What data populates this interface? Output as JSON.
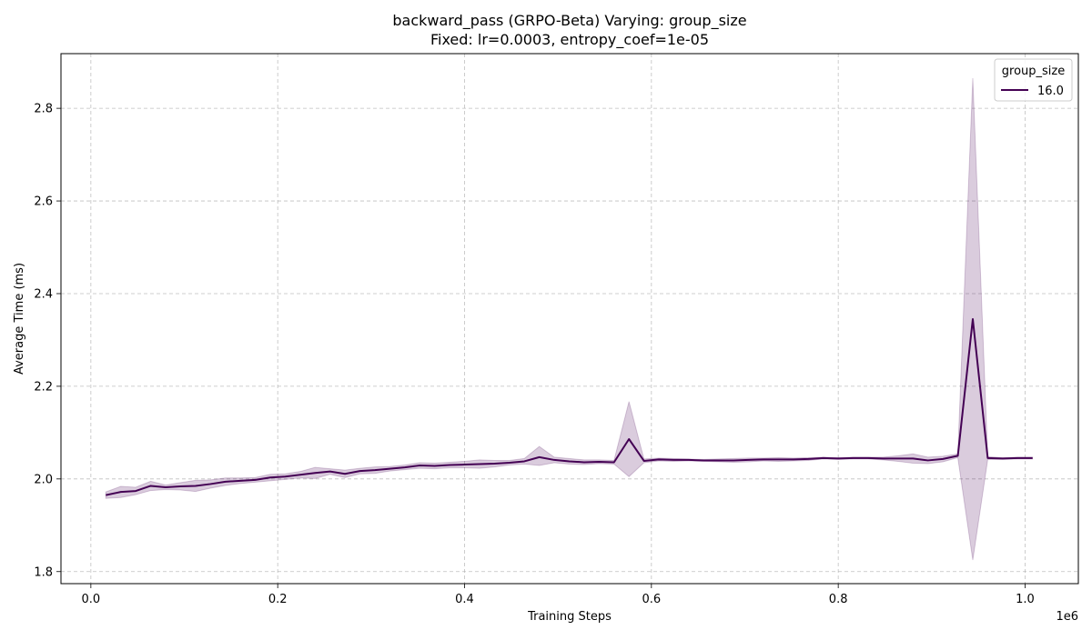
{
  "chart_data": {
    "type": "line",
    "title": "backward_pass (GRPO-Beta) Varying: group_size",
    "subtitle": "Fixed: lr=0.0003, entropy_coef=1e-05",
    "xlabel": "Training Steps",
    "ylabel": "Average Time (ms)",
    "x_offset_label": "1e6",
    "xlim": [
      -0.032,
      1.057
    ],
    "ylim": [
      1.774,
      2.918
    ],
    "x_ticks": [
      0.0,
      0.2,
      0.4,
      0.6,
      0.8,
      1.0
    ],
    "x_tick_labels": [
      "0.0",
      "0.2",
      "0.4",
      "0.6",
      "0.8",
      "1.0"
    ],
    "y_ticks": [
      1.8,
      2.0,
      2.2,
      2.4,
      2.6,
      2.8
    ],
    "y_tick_labels": [
      "1.8",
      "2.0",
      "2.2",
      "2.4",
      "2.6",
      "2.8"
    ],
    "grid": true,
    "legend": {
      "title": "group_size",
      "position": "top-right"
    },
    "series": [
      {
        "name": "16.0",
        "color": "#440154",
        "band_color": "#440154",
        "x": [
          0.016,
          0.032,
          0.048,
          0.064,
          0.08,
          0.096,
          0.112,
          0.128,
          0.144,
          0.16,
          0.176,
          0.192,
          0.208,
          0.224,
          0.24,
          0.256,
          0.272,
          0.288,
          0.304,
          0.32,
          0.336,
          0.352,
          0.368,
          0.384,
          0.4,
          0.416,
          0.432,
          0.448,
          0.464,
          0.48,
          0.496,
          0.512,
          0.528,
          0.544,
          0.56,
          0.576,
          0.592,
          0.608,
          0.624,
          0.64,
          0.656,
          0.672,
          0.688,
          0.704,
          0.72,
          0.736,
          0.752,
          0.768,
          0.784,
          0.8,
          0.816,
          0.832,
          0.848,
          0.864,
          0.88,
          0.896,
          0.912,
          0.928,
          0.944,
          0.96,
          0.976,
          0.992,
          1.008
        ],
        "y": [
          1.965,
          1.972,
          1.974,
          1.985,
          1.982,
          1.984,
          1.985,
          1.989,
          1.994,
          1.996,
          1.998,
          2.003,
          2.005,
          2.009,
          2.013,
          2.016,
          2.011,
          2.017,
          2.019,
          2.022,
          2.025,
          2.029,
          2.028,
          2.03,
          2.031,
          2.032,
          2.033,
          2.035,
          2.038,
          2.047,
          2.041,
          2.038,
          2.036,
          2.037,
          2.036,
          2.086,
          2.039,
          2.042,
          2.041,
          2.041,
          2.04,
          2.04,
          2.04,
          2.041,
          2.042,
          2.042,
          2.042,
          2.043,
          2.045,
          2.044,
          2.045,
          2.045,
          2.044,
          2.044,
          2.044,
          2.04,
          2.043,
          2.05,
          2.345,
          2.045,
          2.044,
          2.045,
          2.045
        ],
        "lower": [
          1.958,
          1.96,
          1.966,
          1.975,
          1.977,
          1.976,
          1.973,
          1.98,
          1.986,
          1.99,
          1.993,
          1.996,
          1.999,
          2.002,
          2.001,
          2.01,
          2.003,
          2.011,
          2.012,
          2.017,
          2.02,
          2.023,
          2.022,
          2.024,
          2.024,
          2.023,
          2.026,
          2.03,
          2.032,
          2.029,
          2.035,
          2.032,
          2.031,
          2.033,
          2.032,
          2.005,
          2.035,
          2.039,
          2.038,
          2.039,
          2.038,
          2.037,
          2.036,
          2.037,
          2.039,
          2.038,
          2.039,
          2.04,
          2.043,
          2.042,
          2.043,
          2.043,
          2.041,
          2.038,
          2.034,
          2.033,
          2.037,
          2.046,
          1.825,
          2.042,
          2.042,
          2.043,
          2.043
        ],
        "upper": [
          1.972,
          1.984,
          1.982,
          1.995,
          1.987,
          1.992,
          1.997,
          1.998,
          2.002,
          2.002,
          2.003,
          2.01,
          2.011,
          2.016,
          2.025,
          2.022,
          2.019,
          2.023,
          2.026,
          2.027,
          2.03,
          2.035,
          2.034,
          2.036,
          2.038,
          2.041,
          2.04,
          2.04,
          2.044,
          2.07,
          2.047,
          2.044,
          2.041,
          2.041,
          2.04,
          2.167,
          2.043,
          2.045,
          2.044,
          2.043,
          2.042,
          2.043,
          2.044,
          2.045,
          2.045,
          2.046,
          2.045,
          2.046,
          2.047,
          2.046,
          2.047,
          2.047,
          2.047,
          2.05,
          2.054,
          2.047,
          2.049,
          2.054,
          2.865,
          2.048,
          2.046,
          2.047,
          2.047
        ]
      }
    ]
  }
}
